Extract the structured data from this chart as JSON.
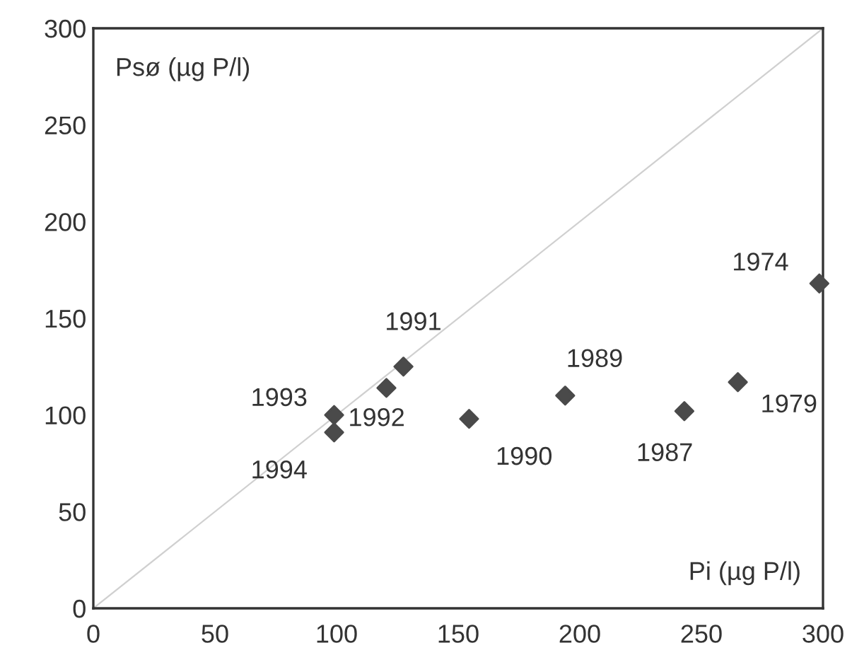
{
  "chart_data": {
    "type": "scatter",
    "xlabel": "Pi (µg P/l)",
    "ylabel": "Psø (µg P/l)",
    "xlim": [
      0,
      300
    ],
    "ylim": [
      0,
      300
    ],
    "xticks": [
      0,
      50,
      100,
      150,
      200,
      250,
      300
    ],
    "yticks": [
      0,
      50,
      100,
      150,
      200,
      250,
      300
    ],
    "grid": false,
    "legend": false,
    "marker": "diamond",
    "series": [
      {
        "type": "line",
        "color": "#d0d0d0",
        "x": [
          0,
          300
        ],
        "values": [
          0,
          300
        ],
        "marker": "none"
      },
      {
        "color": "#4a4a4a",
        "x": [
          298.5,
          265,
          243,
          194,
          154.5,
          127.5,
          120.5,
          99,
          99
        ],
        "values": [
          168,
          117,
          102,
          110,
          98,
          125,
          114,
          100,
          91
        ]
      }
    ],
    "annotations": [
      {
        "text": "1974",
        "x": 298.5,
        "y": 168
      },
      {
        "text": "1979",
        "x": 265,
        "y": 117
      },
      {
        "text": "1987",
        "x": 243,
        "y": 102
      },
      {
        "text": "1989",
        "x": 194,
        "y": 110
      },
      {
        "text": "1990",
        "x": 154.5,
        "y": 98
      },
      {
        "text": "1991",
        "x": 127.5,
        "y": 125
      },
      {
        "text": "1992",
        "x": 120.5,
        "y": 114
      },
      {
        "text": "1993",
        "x": 99,
        "y": 100
      },
      {
        "text": "1994",
        "x": 99,
        "y": 91
      }
    ]
  }
}
